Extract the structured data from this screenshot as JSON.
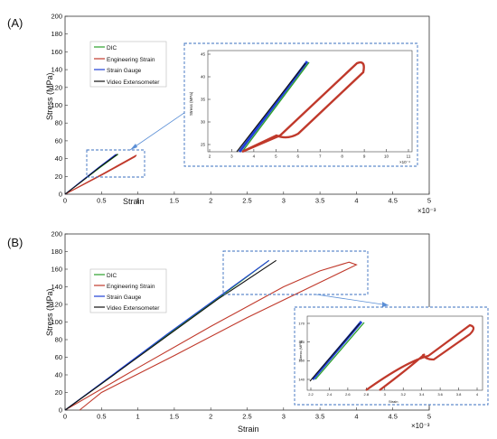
{
  "panels": [
    {
      "label": "(A)",
      "xlabel": "Strain",
      "ylabel": "Stress (MPa)",
      "x_multiplier": "×10⁻³",
      "xticks": [
        "0",
        "0.5",
        "1",
        "1.5",
        "2",
        "2.5",
        "3",
        "3.5",
        "4",
        "4.5",
        "5"
      ],
      "yticks": [
        "0",
        "20",
        "40",
        "60",
        "80",
        "100",
        "120",
        "140",
        "160",
        "180",
        "200"
      ],
      "legend": [
        "DIC",
        "Engineering Strain",
        "Strain Gauge",
        "Video Extensometer"
      ],
      "inset": {
        "ylabel": "Stress (MPa)",
        "x_multiplier": "×10⁻⁴",
        "xticks": [
          "2",
          "3",
          "4",
          "5",
          "6",
          "7",
          "8",
          "9",
          "10",
          "11"
        ],
        "yticks": [
          "25",
          "30",
          "35",
          "40",
          "45"
        ]
      }
    },
    {
      "label": "(B)",
      "xlabel": "Strain",
      "ylabel": "Stress (MPa)",
      "x_multiplier": "×10⁻³",
      "xticks": [
        "0",
        "0.5",
        "1",
        "1.5",
        "2",
        "2.5",
        "3",
        "3.5",
        "4",
        "4.5",
        "5"
      ],
      "yticks": [
        "0",
        "20",
        "40",
        "60",
        "80",
        "100",
        "120",
        "140",
        "160",
        "180",
        "200"
      ],
      "legend": [
        "DIC",
        "Engineering Strain",
        "Strain Gauge",
        "Video Extensometer"
      ],
      "inset": {
        "ylabel": "Stress (MPa)",
        "xlabel": "Strain",
        "xticks": [
          "2.2",
          "2.4",
          "2.6",
          "2.8",
          "3",
          "3.2",
          "3.4",
          "3.6",
          "3.8",
          "4"
        ],
        "yticks": [
          "140",
          "150",
          "160",
          "170"
        ]
      }
    }
  ],
  "chart_data": [
    {
      "type": "line",
      "title": "",
      "xlabel": "Strain",
      "ylabel": "Stress (MPa)",
      "xlim": [
        0,
        0.005
      ],
      "ylim": [
        0,
        200
      ],
      "grid": false,
      "legend_position": "top-left",
      "colors": {
        "DIC": "#2ca02c",
        "Engineering Strain": "#c0392b",
        "Strain Gauge": "#1f3fd6",
        "Video Extensometer": "#111111"
      },
      "series": [
        {
          "name": "DIC",
          "x": [
            0.0,
            0.00024,
            0.00048,
            0.00073
          ],
          "y": [
            0,
            15,
            30,
            45
          ]
        },
        {
          "name": "Engineering Strain",
          "x": [
            0.0,
            0.00052,
            0.00098,
            0.00096,
            0.00054,
            0.0
          ],
          "y": [
            0,
            23,
            44,
            42,
            23,
            0
          ]
        },
        {
          "name": "Strain Gauge",
          "x": [
            0.0,
            0.00023,
            0.00046,
            0.0007
          ],
          "y": [
            0,
            15,
            30,
            45
          ]
        },
        {
          "name": "Video Extensometer",
          "x": [
            0.0,
            0.00024,
            0.00047,
            0.00072
          ],
          "y": [
            0,
            15,
            30,
            45
          ]
        }
      ]
    },
    {
      "type": "line",
      "title": "",
      "xlabel": "Strain",
      "ylabel": "Stress (MPa)",
      "xlim": [
        0,
        0.005
      ],
      "ylim": [
        0,
        200
      ],
      "grid": false,
      "legend_position": "top-left",
      "colors": {
        "DIC": "#2ca02c",
        "Engineering Strain": "#c0392b",
        "Strain Gauge": "#1f3fd6",
        "Video Extensometer": "#111111"
      },
      "series": [
        {
          "name": "DIC",
          "x": [
            0.0,
            0.0007,
            0.0014,
            0.0021,
            0.0028
          ],
          "y": [
            0,
            42,
            85,
            127,
            170
          ]
        },
        {
          "name": "Engineering Strain",
          "x": [
            0.0,
            0.001,
            0.002,
            0.003,
            0.0035,
            0.0039,
            0.004,
            0.0035,
            0.0025,
            0.0015,
            0.0005,
            0.0002
          ],
          "y": [
            0,
            48,
            95,
            140,
            158,
            168,
            165,
            145,
            105,
            62,
            20,
            0
          ]
        },
        {
          "name": "Strain Gauge",
          "x": [
            0.0,
            0.0007,
            0.0014,
            0.0021,
            0.0028
          ],
          "y": [
            0,
            43,
            86,
            128,
            170
          ]
        },
        {
          "name": "Video Extensometer",
          "x": [
            0.0,
            0.0007,
            0.0014,
            0.0021,
            0.0029
          ],
          "y": [
            0,
            42,
            84,
            126,
            170
          ]
        }
      ]
    }
  ]
}
